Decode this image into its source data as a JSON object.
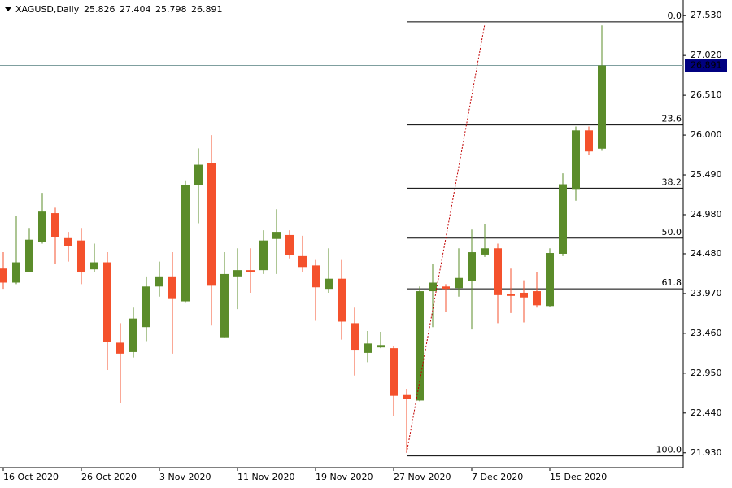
{
  "chart_data": {
    "type": "candlestick",
    "title": "XAGUSD,Daily",
    "categories": [
      "16 Oct 2020",
      null,
      null,
      null,
      null,
      null,
      "26 Oct 2020",
      null,
      null,
      null,
      null,
      null,
      "3 Nov 2020",
      null,
      null,
      null,
      null,
      null,
      "11 Nov 2020",
      null,
      null,
      null,
      null,
      null,
      "19 Nov 2020",
      null,
      null,
      null,
      null,
      null,
      "27 Nov 2020",
      null,
      null,
      null,
      null,
      null,
      "7 Dec 2020",
      null,
      null,
      null,
      null,
      null,
      "15 Dec 2020",
      null,
      null,
      null,
      null
    ],
    "open": [
      24.29,
      24.11,
      24.25,
      24.63,
      25.0,
      24.68,
      24.65,
      24.28,
      24.37,
      23.34,
      23.22,
      23.54,
      24.06,
      24.19,
      23.87,
      25.36,
      25.64,
      23.41,
      24.19,
      24.27,
      24.27,
      24.67,
      24.72,
      24.45,
      24.33,
      24.03,
      24.16,
      23.59,
      23.21,
      23.28,
      23.27,
      22.67,
      22.6,
      24.0,
      24.06,
      24.04,
      24.13,
      24.47,
      24.55,
      23.96,
      23.98,
      24.0,
      23.81,
      24.48,
      25.31,
      26.06,
      25.826
    ],
    "high": [
      24.5,
      24.97,
      24.81,
      25.26,
      25.07,
      24.76,
      24.81,
      24.61,
      24.5,
      23.59,
      23.79,
      24.19,
      24.38,
      24.5,
      25.42,
      25.83,
      26.0,
      24.5,
      24.55,
      24.55,
      24.78,
      25.05,
      24.78,
      24.71,
      24.4,
      24.55,
      24.4,
      23.79,
      23.49,
      23.48,
      23.3,
      22.75,
      24.06,
      24.35,
      24.09,
      24.55,
      24.79,
      24.86,
      24.61,
      24.29,
      24.14,
      24.24,
      24.55,
      25.51,
      26.11,
      26.11,
      27.404
    ],
    "low": [
      24.03,
      24.09,
      24.24,
      24.61,
      24.35,
      24.38,
      24.09,
      24.24,
      22.99,
      22.57,
      23.15,
      23.36,
      23.93,
      23.2,
      23.86,
      24.87,
      23.56,
      23.41,
      23.77,
      23.98,
      24.22,
      24.22,
      24.42,
      24.24,
      23.62,
      23.98,
      23.38,
      22.92,
      23.09,
      23.27,
      22.4,
      21.93,
      22.59,
      23.54,
      23.74,
      23.93,
      23.51,
      24.44,
      23.59,
      23.72,
      23.6,
      23.79,
      23.8,
      24.45,
      25.16,
      25.75,
      25.798
    ],
    "close": [
      24.11,
      24.37,
      24.66,
      25.02,
      24.69,
      24.58,
      24.24,
      24.37,
      23.35,
      23.2,
      23.65,
      24.06,
      24.19,
      23.9,
      25.36,
      25.62,
      24.07,
      24.22,
      24.27,
      24.25,
      24.65,
      24.76,
      24.46,
      24.31,
      24.05,
      24.16,
      23.61,
      23.25,
      23.33,
      23.31,
      22.66,
      22.62,
      24.0,
      24.11,
      24.03,
      24.17,
      24.5,
      24.55,
      23.95,
      23.94,
      23.92,
      23.82,
      24.49,
      25.37,
      26.06,
      25.79,
      26.891
    ],
    "up_color": "#5b8c2a",
    "down_color": "#f4512c",
    "ylim": [
      21.74,
      27.73
    ],
    "yticks": [
      {
        "value": 27.53,
        "label": "27.530"
      },
      {
        "value": 27.02,
        "label": "27.020"
      },
      {
        "value": 26.51,
        "label": "26.510"
      },
      {
        "value": 26.0,
        "label": "26.000"
      },
      {
        "value": 25.49,
        "label": "25.490"
      },
      {
        "value": 24.98,
        "label": "24.980"
      },
      {
        "value": 24.48,
        "label": "24.480"
      },
      {
        "value": 23.97,
        "label": "23.970"
      },
      {
        "value": 23.46,
        "label": "23.460"
      },
      {
        "value": 22.95,
        "label": "22.950"
      },
      {
        "value": 22.44,
        "label": "22.440"
      },
      {
        "value": 21.93,
        "label": "21.930"
      }
    ],
    "fib_levels": [
      {
        "value": 27.45,
        "label": "0.0"
      },
      {
        "value": 26.13,
        "label": "23.6"
      },
      {
        "value": 25.32,
        "label": "38.2"
      },
      {
        "value": 24.68,
        "label": "50.0"
      },
      {
        "value": 24.03,
        "label": "61.8"
      },
      {
        "value": 21.89,
        "label": "100.0"
      }
    ],
    "trendline": {
      "x": [
        31,
        37
      ],
      "y": [
        21.93,
        27.42
      ],
      "color": "#c00000"
    },
    "price_line_color": "#7f9f9f",
    "price_label_color": "#000080"
  }
}
